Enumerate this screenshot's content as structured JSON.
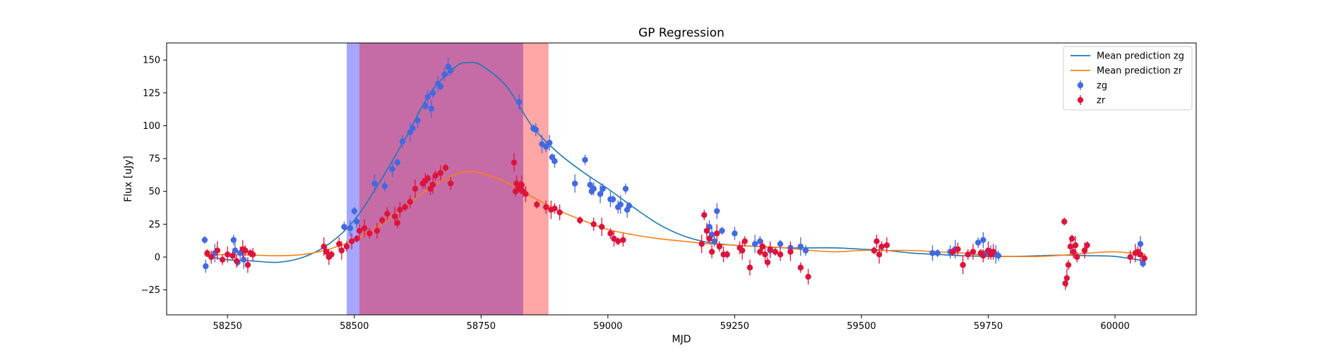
{
  "chart_data": {
    "type": "scatter",
    "title": "GP Regression",
    "xlabel": "MJD",
    "ylabel": "Flux [uJy]",
    "xlim": [
      58130,
      60160
    ],
    "ylim": [
      -44,
      163
    ],
    "grid": false,
    "legend_position": "top-right",
    "x_ticks": [
      58250,
      58500,
      58750,
      59000,
      59250,
      59500,
      59750,
      60000
    ],
    "y_ticks": [
      -25,
      0,
      25,
      50,
      75,
      100,
      125,
      150
    ],
    "x_tick_labels": [
      "58250",
      "58500",
      "58750",
      "59000",
      "59250",
      "59500",
      "59750",
      "60000"
    ],
    "y_tick_labels": [
      "−25",
      "0",
      "25",
      "50",
      "75",
      "100",
      "125",
      "150"
    ],
    "colors": {
      "mean_zg": "#1f77b4",
      "mean_zr": "#ff7f0e",
      "points_zg": "#4169e1",
      "points_zr": "#dc143c",
      "band_blue": "#0000ff",
      "band_red": "#ff0000"
    },
    "shaded_regions": [
      {
        "x0": 58485,
        "x1": 58833,
        "color": "#0000ff",
        "opacity": 0.35
      },
      {
        "x0": 58510,
        "x1": 58883,
        "color": "#ff0000",
        "opacity": 0.35
      }
    ],
    "legend": [
      {
        "label": "Mean prediction zg",
        "kind": "line",
        "color": "#1f77b4"
      },
      {
        "label": "Mean prediction zr",
        "kind": "line",
        "color": "#ff7f0e"
      },
      {
        "label": "zg",
        "kind": "point",
        "color": "#4169e1"
      },
      {
        "label": "zr",
        "kind": "point",
        "color": "#dc143c"
      }
    ],
    "series": [
      {
        "name": "Mean prediction zg",
        "kind": "line",
        "color": "#1f77b4",
        "x": [
          58205,
          58250,
          58300,
          58350,
          58400,
          58450,
          58500,
          58550,
          58600,
          58650,
          58700,
          58725,
          58750,
          58800,
          58850,
          58900,
          58950,
          59000,
          59050,
          59100,
          59150,
          59200,
          59250,
          59300,
          59350,
          59400,
          59450,
          59500,
          59550,
          59600,
          59650,
          59700,
          59750,
          59800,
          59850,
          59900,
          59950,
          60000,
          60060
        ],
        "y": [
          1,
          -2,
          -3,
          -4,
          0,
          10,
          28,
          57,
          90,
          125,
          145,
          148,
          146,
          130,
          100,
          80,
          65,
          52,
          38,
          25,
          16,
          11,
          9,
          8,
          7,
          7,
          7,
          6,
          5,
          3,
          2,
          1,
          0.5,
          0.5,
          1,
          1.5,
          1,
          0.5,
          -3
        ]
      },
      {
        "name": "Mean prediction zr",
        "kind": "line",
        "color": "#ff7f0e",
        "x": [
          58205,
          58250,
          58300,
          58350,
          58400,
          58450,
          58500,
          58550,
          58600,
          58650,
          58700,
          58725,
          58750,
          58800,
          58850,
          58900,
          58950,
          59000,
          59050,
          59100,
          59150,
          59200,
          59250,
          59300,
          59350,
          59400,
          59450,
          59500,
          59550,
          59600,
          59650,
          59700,
          59750,
          59800,
          59850,
          59900,
          59950,
          60000,
          60060
        ],
        "y": [
          1,
          2,
          1.5,
          1,
          2,
          6,
          13,
          24,
          38,
          53,
          63,
          65,
          64,
          57,
          46,
          36,
          28,
          21,
          17,
          14,
          12,
          10,
          9,
          8,
          7,
          5,
          4,
          5,
          5,
          5,
          4,
          3,
          1,
          0.5,
          0.5,
          1.5,
          3,
          4,
          2
        ]
      },
      {
        "name": "zg",
        "kind": "points",
        "color": "#4169e1",
        "x": [
          58205,
          58207,
          58225,
          58262,
          58265,
          58270,
          58275,
          58282,
          58480,
          58492,
          58500,
          58505,
          58540,
          58560,
          58575,
          58585,
          58595,
          58610,
          58615,
          58625,
          58640,
          58645,
          58652,
          58655,
          58665,
          58670,
          58678,
          58685,
          58690,
          58825,
          58853,
          58858,
          58870,
          58878,
          58885,
          58890,
          58895,
          58935,
          58955,
          58965,
          58968,
          58972,
          58985,
          58990,
          59005,
          59010,
          59020,
          59025,
          59035,
          59038,
          59042,
          59200,
          59205,
          59210,
          59215,
          59225,
          59250,
          59290,
          59300,
          59320,
          59340,
          59360,
          59380,
          59390,
          59640,
          59650,
          59675,
          59685,
          59730,
          59740,
          59745,
          59755,
          59765,
          59770,
          60050,
          60055
        ],
        "y": [
          13,
          -7,
          3,
          13,
          5,
          -4,
          3,
          -2,
          23,
          22,
          35,
          27,
          56,
          54,
          67,
          72,
          88,
          95,
          98,
          104,
          115,
          122,
          113,
          125,
          132,
          130,
          139,
          145,
          142,
          118,
          98,
          97,
          86,
          84,
          87,
          76,
          73,
          56,
          74,
          55,
          50,
          52,
          48,
          52,
          44,
          44,
          38,
          40,
          52,
          36,
          39,
          23,
          17,
          12,
          35,
          20,
          18,
          10,
          12,
          5,
          10,
          7,
          8,
          5,
          3,
          3,
          4,
          6,
          11,
          13,
          3,
          4,
          2,
          1,
          10,
          -5
        ]
      },
      {
        "name": "zr",
        "kind": "points",
        "color": "#dc143c",
        "x": [
          58210,
          58218,
          58230,
          58240,
          58250,
          58260,
          58268,
          58280,
          58285,
          58290,
          58295,
          58300,
          58440,
          58445,
          58450,
          58455,
          58470,
          58475,
          58485,
          58495,
          58505,
          58510,
          58520,
          58530,
          58545,
          58555,
          58565,
          58580,
          58585,
          58590,
          58600,
          58610,
          58620,
          58635,
          58640,
          58645,
          58650,
          58655,
          58660,
          58670,
          58680,
          58690,
          58815,
          58818,
          58820,
          58825,
          58828,
          58830,
          58833,
          58838,
          58860,
          58878,
          58888,
          58895,
          58905,
          58945,
          58972,
          58988,
          59005,
          59012,
          59020,
          59030,
          59185,
          59190,
          59195,
          59200,
          59205,
          59215,
          59220,
          59228,
          59235,
          59260,
          59265,
          59270,
          59280,
          59300,
          59305,
          59310,
          59315,
          59320,
          59330,
          59340,
          59360,
          59380,
          59395,
          59525,
          59530,
          59535,
          59540,
          59550,
          59680,
          59690,
          59700,
          59710,
          59720,
          59735,
          59740,
          59750,
          59755,
          59760,
          59900,
          59902,
          59905,
          59908,
          59912,
          59915,
          59918,
          59922,
          59925,
          59940,
          59945,
          60030,
          60040,
          60045,
          60050,
          60058
        ],
        "y": [
          3,
          0,
          5,
          -2,
          2,
          1,
          -3,
          6,
          5,
          -6,
          3,
          2,
          8,
          4,
          0,
          2,
          10,
          5,
          8,
          12,
          14,
          20,
          22,
          18,
          20,
          28,
          33,
          31,
          26,
          36,
          38,
          42,
          52,
          56,
          58,
          60,
          52,
          55,
          62,
          64,
          68,
          56,
          72,
          50,
          56,
          52,
          53,
          55,
          50,
          48,
          40,
          38,
          36,
          37,
          34,
          28,
          25,
          23,
          18,
          14,
          12,
          13,
          10,
          32,
          20,
          14,
          4,
          18,
          8,
          2,
          2,
          7,
          5,
          12,
          -8,
          4,
          8,
          2,
          -4,
          6,
          4,
          2,
          4,
          -8,
          -15,
          5,
          12,
          2,
          8,
          9,
          4,
          6,
          -6,
          2,
          4,
          3,
          1,
          5,
          2,
          4,
          27,
          -20,
          -16,
          -6,
          8,
          14,
          4,
          9,
          0,
          5,
          9,
          0,
          3,
          4,
          2,
          -1
        ]
      }
    ]
  }
}
